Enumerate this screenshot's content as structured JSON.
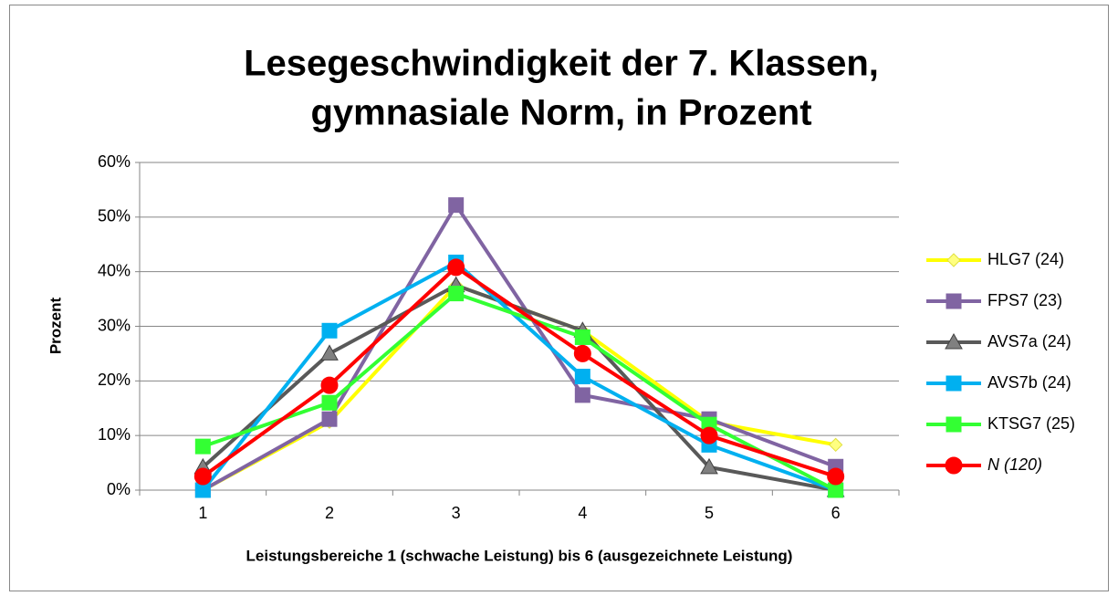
{
  "chart_data": {
    "type": "line",
    "title": [
      "Lesegeschwindigkeit der 7. Klassen,",
      "gymnasiale Norm, in Prozent"
    ],
    "x_label": "Leistungsbereiche 1 (schwache Leistung) bis 6 (ausgezeichnete Leistung)",
    "y_label": "Prozent",
    "categories": [
      "1",
      "2",
      "3",
      "4",
      "5",
      "6"
    ],
    "series": [
      {
        "name": "HLG7 (24)",
        "color": "#ffff00",
        "marker": "diamond",
        "values": [
          0,
          12.5,
          37.5,
          29.2,
          12.5,
          8.3
        ]
      },
      {
        "name": "FPS7 (23)",
        "color": "#8064a2",
        "marker": "square",
        "values": [
          0,
          13.0,
          52.2,
          17.4,
          13.0,
          4.3
        ]
      },
      {
        "name": "AVS7a (24)",
        "color": "#595959",
        "marker": "triangle",
        "values": [
          4.2,
          25,
          37.5,
          29.2,
          4.2,
          0
        ]
      },
      {
        "name": "AVS7b (24)",
        "color": "#00b0f0",
        "marker": "square",
        "values": [
          0,
          29.2,
          41.7,
          20.8,
          8.3,
          0
        ]
      },
      {
        "name": "KTSG7 (25)",
        "color": "#33ff33",
        "marker": "square",
        "values": [
          8,
          16,
          36,
          28,
          12,
          0
        ]
      },
      {
        "name": "N (120)",
        "color": "#ff0000",
        "marker": "circle",
        "italic": true,
        "values": [
          2.5,
          19.2,
          40.8,
          25,
          10,
          2.5
        ]
      }
    ],
    "ylim": [
      0,
      60
    ],
    "yticks": [
      {
        "value": 0,
        "label": "0%"
      },
      {
        "value": 10,
        "label": "10%"
      },
      {
        "value": 20,
        "label": "20%"
      },
      {
        "value": 30,
        "label": "30%"
      },
      {
        "value": 40,
        "label": "40%"
      },
      {
        "value": 50,
        "label": "50%"
      },
      {
        "value": 60,
        "label": "60%"
      }
    ],
    "grid": true,
    "legend": "right"
  }
}
